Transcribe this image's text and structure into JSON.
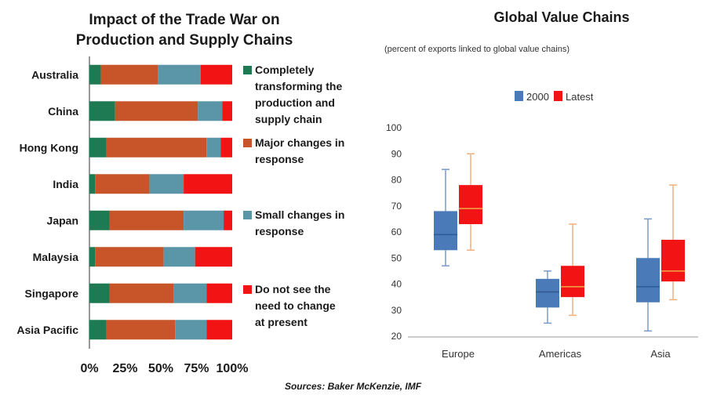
{
  "source": "Sources: Baker McKenzie, IMF",
  "colors": {
    "completely": "#1e7a52",
    "major": "#c8552a",
    "small": "#5a96a8",
    "not_needed": "#f21414",
    "box_2000": "#4a7ab8",
    "box_latest": "#f21414",
    "whisker_2000": "#7a9bc8",
    "whisker_latest": "#f0b07a",
    "median_2000": "#2f5a94",
    "median_latest": "#f0a84a"
  },
  "chart_data": [
    {
      "type": "bar",
      "stacked": true,
      "orientation": "horizontal",
      "title_lines": [
        "Impact of the Trade War on",
        "Production and Supply Chains"
      ],
      "categories": [
        "Australia",
        "China",
        "Hong Kong",
        "India",
        "Japan",
        "Malaysia",
        "Singapore",
        "Asia Pacific"
      ],
      "series": [
        {
          "name": "Completely transforming the production and supply chain",
          "legend_lines": [
            "Completely",
            "transforming the",
            "production and",
            "supply chain"
          ],
          "color_key": "completely",
          "values": [
            8,
            18,
            12,
            4,
            14,
            4,
            14,
            12
          ]
        },
        {
          "name": "Major changes in response",
          "legend_lines": [
            "Major changes in",
            "response"
          ],
          "color_key": "major",
          "values": [
            40,
            58,
            70,
            38,
            52,
            48,
            45,
            48
          ]
        },
        {
          "name": "Small changes in response",
          "legend_lines": [
            "Small changes in",
            "response"
          ],
          "color_key": "small",
          "values": [
            30,
            17,
            10,
            24,
            28,
            22,
            23,
            22
          ]
        },
        {
          "name": "Do not see the need to change at present",
          "legend_lines": [
            "Do not see the",
            "need to change",
            "at present"
          ],
          "color_key": "not_needed",
          "values": [
            22,
            7,
            8,
            34,
            6,
            26,
            18,
            18
          ]
        }
      ],
      "xlim": [
        0,
        100
      ],
      "x_ticks": [
        "0%",
        "25%",
        "50%",
        "75%",
        "100%"
      ]
    },
    {
      "type": "box",
      "title": "Global Value Chains",
      "subtitle": "(percent of exports linked to global value chains)",
      "categories": [
        "Europe",
        "Americas",
        "Asia"
      ],
      "legend": [
        "2000",
        "Latest"
      ],
      "ylim": [
        20,
        100
      ],
      "y_ticks": [
        20,
        30,
        40,
        50,
        60,
        70,
        80,
        90,
        100
      ],
      "series": [
        {
          "name": "2000",
          "boxes": [
            {
              "min": 47,
              "q1": 53,
              "median": 59,
              "q3": 68,
              "max": 84
            },
            {
              "min": 25,
              "q1": 31,
              "median": 37,
              "q3": 42,
              "max": 45
            },
            {
              "min": 22,
              "q1": 33,
              "median": 39,
              "q3": 50,
              "max": 65
            }
          ]
        },
        {
          "name": "Latest",
          "boxes": [
            {
              "min": 53,
              "q1": 63,
              "median": 69,
              "q3": 78,
              "max": 90
            },
            {
              "min": 28,
              "q1": 35,
              "median": 39,
              "q3": 47,
              "max": 63
            },
            {
              "min": 34,
              "q1": 41,
              "median": 45,
              "q3": 57,
              "max": 78
            }
          ]
        }
      ]
    }
  ]
}
